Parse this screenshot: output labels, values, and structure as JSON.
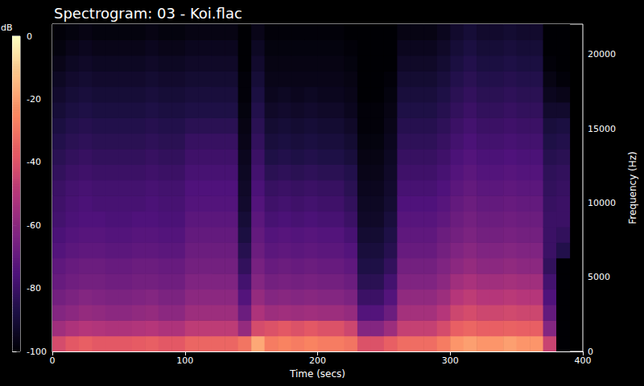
{
  "chart_data": {
    "type": "heatmap",
    "title": "Spectrogram: 03 - Koi.flac",
    "xlabel": "Time (secs)",
    "ylabel": "Frequency (Hz)",
    "xlim": [
      0,
      400
    ],
    "xticks": [
      0,
      100,
      200,
      300,
      400
    ],
    "ylim": [
      0,
      22050
    ],
    "yticks": [
      0,
      5000,
      10000,
      15000,
      20000
    ],
    "grid": false,
    "colorbar": {
      "label": "dB",
      "range": [
        -100,
        0
      ],
      "ticks": [
        -100,
        -80,
        -60,
        -40,
        -20,
        0
      ]
    },
    "heatmap": {
      "x_edges": [
        0,
        10,
        20,
        30,
        40,
        50,
        60,
        70,
        80,
        90,
        100,
        110,
        120,
        130,
        140,
        150,
        160,
        170,
        180,
        190,
        200,
        210,
        220,
        230,
        240,
        250,
        260,
        270,
        280,
        290,
        300,
        310,
        320,
        330,
        340,
        350,
        360,
        370,
        380,
        390
      ],
      "y_edges": [
        0,
        1050,
        2100,
        3150,
        4200,
        5250,
        6300,
        7350,
        8400,
        9450,
        10500,
        11550,
        12600,
        13650,
        14700,
        15750,
        16800,
        17850,
        18900,
        19950,
        21000,
        22050
      ],
      "cells": [
        [
          -42,
          -55,
          -62,
          -66,
          -69,
          -71,
          -74,
          -76,
          -78,
          -79,
          -80,
          -82,
          -84,
          -86,
          -88,
          -90,
          -92,
          -94,
          -96,
          -98,
          -99
        ],
        [
          -38,
          -52,
          -60,
          -64,
          -67,
          -69,
          -72,
          -74,
          -76,
          -77,
          -78,
          -80,
          -82,
          -84,
          -86,
          -88,
          -90,
          -92,
          -94,
          -96,
          -98
        ],
        [
          -36,
          -50,
          -58,
          -62,
          -66,
          -68,
          -71,
          -73,
          -75,
          -76,
          -77,
          -79,
          -81,
          -83,
          -85,
          -87,
          -89,
          -91,
          -93,
          -95,
          -97
        ],
        [
          -38,
          -51,
          -59,
          -63,
          -66,
          -68,
          -71,
          -73,
          -75,
          -77,
          -78,
          -80,
          -82,
          -84,
          -86,
          -88,
          -90,
          -92,
          -94,
          -96,
          -98
        ],
        [
          -38,
          -52,
          -60,
          -64,
          -67,
          -69,
          -72,
          -74,
          -76,
          -77,
          -78,
          -80,
          -82,
          -84,
          -86,
          -88,
          -90,
          -92,
          -94,
          -96,
          -98
        ],
        [
          -38,
          -52,
          -60,
          -64,
          -67,
          -69,
          -72,
          -74,
          -76,
          -77,
          -78,
          -80,
          -82,
          -84,
          -86,
          -88,
          -90,
          -92,
          -94,
          -96,
          -98
        ],
        [
          -37,
          -51,
          -59,
          -63,
          -66,
          -68,
          -71,
          -73,
          -75,
          -77,
          -78,
          -80,
          -82,
          -84,
          -86,
          -88,
          -90,
          -92,
          -94,
          -96,
          -98
        ],
        [
          -36,
          -50,
          -58,
          -62,
          -66,
          -68,
          -71,
          -73,
          -75,
          -76,
          -77,
          -79,
          -81,
          -83,
          -85,
          -87,
          -89,
          -91,
          -93,
          -95,
          -97
        ],
        [
          -38,
          -52,
          -60,
          -64,
          -67,
          -69,
          -72,
          -74,
          -76,
          -77,
          -78,
          -80,
          -82,
          -84,
          -86,
          -88,
          -90,
          -92,
          -94,
          -96,
          -98
        ],
        [
          -38,
          -52,
          -60,
          -64,
          -67,
          -69,
          -72,
          -74,
          -76,
          -77,
          -78,
          -80,
          -82,
          -84,
          -86,
          -88,
          -90,
          -92,
          -94,
          -96,
          -98
        ],
        [
          -34,
          -48,
          -56,
          -60,
          -63,
          -66,
          -68,
          -70,
          -72,
          -74,
          -75,
          -77,
          -79,
          -81,
          -84,
          -87,
          -89,
          -91,
          -93,
          -95,
          -97
        ],
        [
          -34,
          -48,
          -56,
          -60,
          -63,
          -66,
          -68,
          -70,
          -72,
          -74,
          -75,
          -77,
          -79,
          -81,
          -84,
          -87,
          -89,
          -91,
          -93,
          -95,
          -97
        ],
        [
          -34,
          -48,
          -56,
          -60,
          -63,
          -66,
          -68,
          -70,
          -72,
          -74,
          -75,
          -77,
          -79,
          -81,
          -84,
          -87,
          -89,
          -91,
          -93,
          -95,
          -97
        ],
        [
          -34,
          -48,
          -56,
          -60,
          -63,
          -66,
          -68,
          -70,
          -72,
          -74,
          -75,
          -77,
          -79,
          -81,
          -84,
          -87,
          -89,
          -91,
          -93,
          -95,
          -97
        ],
        [
          -30,
          -58,
          -68,
          -74,
          -78,
          -82,
          -85,
          -88,
          -90,
          -92,
          -93,
          -94,
          -95,
          -96,
          -97,
          -98,
          -99,
          -99,
          -100,
          -100,
          -100
        ],
        [
          -18,
          -42,
          -52,
          -58,
          -62,
          -65,
          -68,
          -70,
          -72,
          -74,
          -76,
          -78,
          -80,
          -82,
          -84,
          -86,
          -88,
          -90,
          -92,
          -94,
          -96
        ],
        [
          -28,
          -40,
          -56,
          -62,
          -66,
          -69,
          -72,
          -74,
          -77,
          -79,
          -81,
          -84,
          -87,
          -89,
          -91,
          -93,
          -95,
          -96,
          -97,
          -98,
          -99
        ],
        [
          -26,
          -38,
          -55,
          -61,
          -65,
          -68,
          -71,
          -73,
          -76,
          -78,
          -80,
          -83,
          -86,
          -88,
          -90,
          -92,
          -94,
          -96,
          -97,
          -98,
          -99
        ],
        [
          -28,
          -40,
          -56,
          -62,
          -66,
          -69,
          -72,
          -74,
          -77,
          -79,
          -81,
          -84,
          -87,
          -89,
          -91,
          -93,
          -95,
          -96,
          -97,
          -98,
          -99
        ],
        [
          -26,
          -38,
          -55,
          -61,
          -65,
          -68,
          -71,
          -73,
          -76,
          -78,
          -80,
          -83,
          -86,
          -88,
          -90,
          -92,
          -94,
          -96,
          -97,
          -98,
          -99
        ],
        [
          -28,
          -40,
          -56,
          -62,
          -66,
          -69,
          -72,
          -74,
          -77,
          -79,
          -81,
          -84,
          -87,
          -89,
          -91,
          -93,
          -95,
          -96,
          -97,
          -98,
          -99
        ],
        [
          -28,
          -40,
          -56,
          -62,
          -66,
          -69,
          -72,
          -74,
          -77,
          -79,
          -81,
          -84,
          -87,
          -89,
          -91,
          -93,
          -95,
          -96,
          -97,
          -98,
          -99
        ],
        [
          -30,
          -44,
          -58,
          -64,
          -68,
          -71,
          -74,
          -77,
          -80,
          -82,
          -84,
          -86,
          -89,
          -91,
          -93,
          -95,
          -96,
          -97,
          -98,
          -99,
          -100
        ],
        [
          -40,
          -62,
          -74,
          -80,
          -84,
          -87,
          -89,
          -91,
          -93,
          -94,
          -95,
          -96,
          -97,
          -98,
          -99,
          -99,
          -100,
          -100,
          -100,
          -100,
          -100
        ],
        [
          -40,
          -62,
          -74,
          -80,
          -84,
          -87,
          -89,
          -91,
          -93,
          -94,
          -95,
          -96,
          -97,
          -98,
          -99,
          -99,
          -100,
          -100,
          -100,
          -100,
          -100
        ],
        [
          -36,
          -56,
          -68,
          -74,
          -78,
          -82,
          -85,
          -87,
          -89,
          -91,
          -92,
          -93,
          -94,
          -95,
          -96,
          -97,
          -98,
          -99,
          -100,
          -100,
          -100
        ],
        [
          -32,
          -46,
          -54,
          -59,
          -63,
          -66,
          -69,
          -71,
          -73,
          -75,
          -77,
          -79,
          -81,
          -83,
          -85,
          -87,
          -89,
          -91,
          -93,
          -95,
          -97
        ],
        [
          -32,
          -46,
          -54,
          -59,
          -63,
          -66,
          -69,
          -71,
          -73,
          -75,
          -77,
          -79,
          -81,
          -83,
          -85,
          -87,
          -89,
          -91,
          -93,
          -95,
          -97
        ],
        [
          -32,
          -46,
          -54,
          -59,
          -63,
          -66,
          -69,
          -71,
          -73,
          -75,
          -77,
          -79,
          -81,
          -83,
          -85,
          -87,
          -89,
          -91,
          -93,
          -95,
          -97
        ],
        [
          -28,
          -42,
          -50,
          -56,
          -60,
          -63,
          -66,
          -68,
          -71,
          -73,
          -75,
          -77,
          -79,
          -81,
          -83,
          -85,
          -87,
          -89,
          -91,
          -93,
          -95
        ],
        [
          -22,
          -36,
          -44,
          -50,
          -55,
          -60,
          -63,
          -66,
          -68,
          -70,
          -72,
          -74,
          -76,
          -78,
          -80,
          -82,
          -84,
          -86,
          -88,
          -90,
          -92
        ],
        [
          -20,
          -34,
          -42,
          -48,
          -53,
          -58,
          -61,
          -64,
          -66,
          -68,
          -70,
          -72,
          -74,
          -76,
          -78,
          -80,
          -82,
          -84,
          -86,
          -88,
          -90
        ],
        [
          -22,
          -36,
          -44,
          -50,
          -55,
          -60,
          -63,
          -66,
          -68,
          -70,
          -72,
          -74,
          -76,
          -78,
          -80,
          -82,
          -84,
          -86,
          -88,
          -90,
          -92
        ],
        [
          -22,
          -36,
          -44,
          -50,
          -55,
          -60,
          -63,
          -66,
          -68,
          -70,
          -72,
          -74,
          -76,
          -78,
          -80,
          -82,
          -84,
          -86,
          -88,
          -90,
          -92
        ],
        [
          -20,
          -35,
          -43,
          -49,
          -54,
          -59,
          -62,
          -65,
          -67,
          -69,
          -71,
          -73,
          -75,
          -77,
          -79,
          -81,
          -83,
          -85,
          -87,
          -89,
          -91
        ],
        [
          -22,
          -36,
          -44,
          -50,
          -55,
          -60,
          -63,
          -66,
          -68,
          -70,
          -72,
          -74,
          -76,
          -78,
          -80,
          -82,
          -84,
          -86,
          -88,
          -90,
          -92
        ],
        [
          -22,
          -36,
          -44,
          -50,
          -55,
          -60,
          -63,
          -66,
          -68,
          -70,
          -72,
          -74,
          -76,
          -78,
          -80,
          -82,
          -84,
          -86,
          -88,
          -90,
          -92
        ],
        [
          -45,
          -62,
          -70,
          -75,
          -78,
          -82,
          -80,
          -80,
          -80,
          -81,
          -82,
          -83,
          -85,
          -87,
          -89,
          -92,
          -95,
          -97,
          -99,
          -100,
          -100
        ],
        [
          -100,
          -100,
          -100,
          -100,
          -100,
          -100,
          -86,
          -82,
          -80,
          -80,
          -81,
          -82,
          -84,
          -86,
          -88,
          -92,
          -96,
          -99,
          -100,
          -100,
          -100
        ]
      ]
    }
  }
}
